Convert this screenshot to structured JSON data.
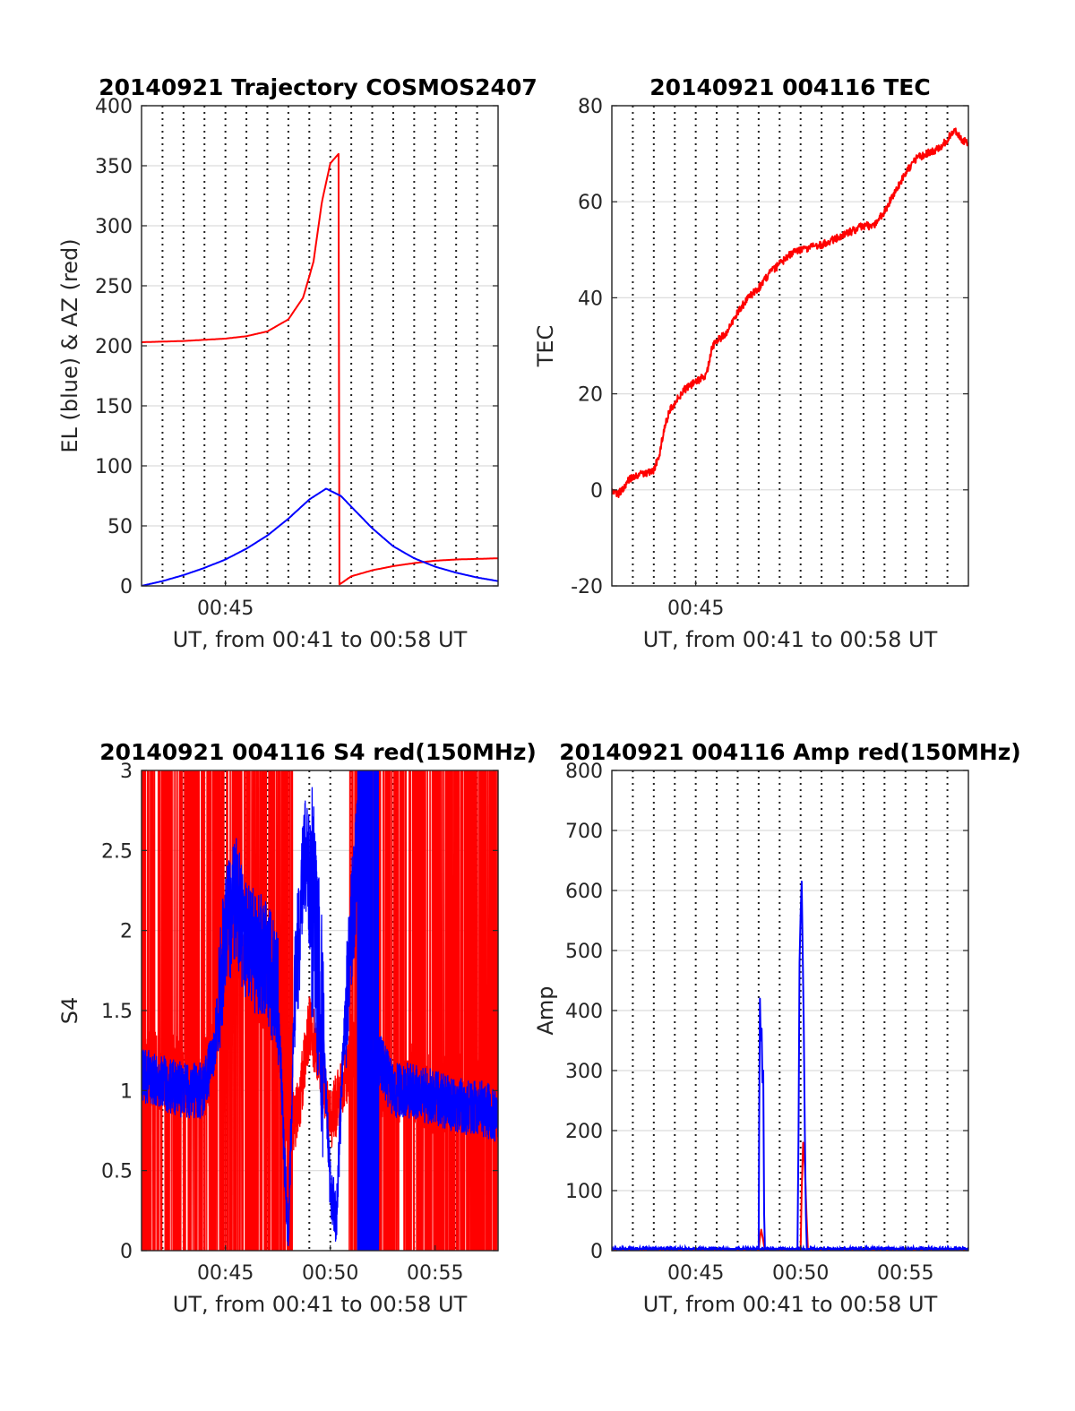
{
  "chart_data": [
    {
      "id": "trajectory",
      "type": "line",
      "title": "20140921 Trajectory COSMOS2407",
      "xlabel": "UT, from 00:41 to 00:58 UT",
      "ylabel": "EL (blue) & AZ (red)",
      "xlim": [
        0,
        17
      ],
      "ylim": [
        0,
        400
      ],
      "yticks": [
        0,
        50,
        100,
        150,
        200,
        250,
        300,
        350,
        400
      ],
      "xticks": [
        {
          "x": 4,
          "label": "00:45"
        }
      ],
      "vgrid_x": [
        1,
        2,
        3,
        4,
        5,
        6,
        7,
        8,
        9,
        10,
        11,
        12,
        13,
        14,
        15,
        16
      ],
      "grid": true,
      "series": [
        {
          "color": "#ff0000",
          "values": [
            [
              0,
              203
            ],
            [
              1,
              203.5
            ],
            [
              2,
              204
            ],
            [
              3,
              205
            ],
            [
              4,
              206
            ],
            [
              5,
              208
            ],
            [
              6,
              212
            ],
            [
              7,
              222
            ],
            [
              7.7,
              240
            ],
            [
              8.2,
              270
            ],
            [
              8.6,
              320
            ],
            [
              9.0,
              352
            ],
            [
              9.4,
              360
            ],
            [
              9.42,
              1
            ],
            [
              10,
              8
            ],
            [
              11,
              13
            ],
            [
              12,
              16.5
            ],
            [
              13,
              19
            ],
            [
              14,
              21
            ],
            [
              15,
              22
            ],
            [
              16,
              22.5
            ],
            [
              17,
              23
            ]
          ]
        },
        {
          "color": "#0000ff",
          "values": [
            [
              0,
              0
            ],
            [
              1,
              4
            ],
            [
              2,
              9
            ],
            [
              3,
              15
            ],
            [
              4,
              22
            ],
            [
              5,
              31
            ],
            [
              6,
              42
            ],
            [
              7,
              56
            ],
            [
              8,
              72
            ],
            [
              8.8,
              81
            ],
            [
              9.5,
              75
            ],
            [
              10,
              66
            ],
            [
              11,
              48
            ],
            [
              12,
              33
            ],
            [
              13,
              23
            ],
            [
              14,
              16
            ],
            [
              15,
              11
            ],
            [
              16,
              7
            ],
            [
              17,
              4
            ]
          ]
        }
      ]
    },
    {
      "id": "tec",
      "type": "line",
      "title": "20140921 004116 TEC",
      "xlabel": "UT, from 00:41 to 00:58 UT",
      "ylabel": "TEC",
      "xlim": [
        0,
        17
      ],
      "ylim": [
        -20,
        80
      ],
      "yticks": [
        -20,
        0,
        20,
        40,
        60,
        80
      ],
      "xticks": [
        {
          "x": 4,
          "label": "00:45"
        }
      ],
      "vgrid_x": [
        1,
        2,
        3,
        4,
        5,
        6,
        7,
        8,
        9,
        10,
        11,
        12,
        13,
        14,
        15,
        16
      ],
      "grid": true,
      "series": [
        {
          "color": "#ff0000",
          "values": [
            [
              0,
              0
            ],
            [
              0.3,
              -1
            ],
            [
              0.8,
              2
            ],
            [
              1.2,
              3
            ],
            [
              2,
              4
            ],
            [
              2.3,
              8
            ],
            [
              2.5,
              13
            ],
            [
              2.8,
              17
            ],
            [
              3.5,
              21
            ],
            [
              4.5,
              24
            ],
            [
              4.8,
              30
            ],
            [
              5.5,
              33
            ],
            [
              6,
              37
            ],
            [
              6.5,
              40
            ],
            [
              7,
              42
            ],
            [
              7.5,
              45
            ],
            [
              8,
              47
            ],
            [
              8.5,
              49
            ],
            [
              9,
              50
            ],
            [
              10,
              51
            ],
            [
              11,
              53
            ],
            [
              12,
              55
            ],
            [
              12.5,
              55
            ],
            [
              13,
              58
            ],
            [
              13.5,
              62
            ],
            [
              14,
              66
            ],
            [
              14.5,
              69
            ],
            [
              15,
              70
            ],
            [
              15.6,
              71
            ],
            [
              16,
              73
            ],
            [
              16.3,
              75
            ],
            [
              16.7,
              73
            ],
            [
              17,
              72
            ]
          ]
        }
      ]
    },
    {
      "id": "s4",
      "type": "line",
      "title": "20140921 004116 S4 red(150MHz)",
      "xlabel": "UT, from 00:41 to 00:58 UT",
      "ylabel": "S4",
      "xlim": [
        0,
        17
      ],
      "ylim": [
        0,
        3
      ],
      "yticks": [
        0,
        0.5,
        1,
        1.5,
        2,
        2.5,
        3
      ],
      "xticks": [
        {
          "x": 4,
          "label": "00:45"
        },
        {
          "x": 9,
          "label": "00:50"
        },
        {
          "x": 14,
          "label": "00:55"
        }
      ],
      "vgrid_x": [
        1,
        2,
        3,
        4,
        5,
        6,
        7,
        8,
        9,
        10,
        11,
        12,
        13,
        14,
        15,
        16
      ],
      "grid": true,
      "series": [
        {
          "color": "#ff0000",
          "style": "noise",
          "values": [
            [
              0,
              1.1
            ],
            [
              1,
              1.0
            ],
            [
              2,
              1.0
            ],
            [
              3,
              0.95
            ],
            [
              3.5,
              1.2
            ],
            [
              4,
              1.8
            ],
            [
              5,
              1.6
            ],
            [
              6,
              1.5
            ],
            [
              6.5,
              1.3
            ],
            [
              7,
              0.7
            ],
            [
              7.5,
              0.9
            ],
            [
              8,
              1.4
            ],
            [
              8.5,
              1.2
            ],
            [
              9,
              0.8
            ],
            [
              9.5,
              1.0
            ],
            [
              10,
              1.2
            ],
            [
              11,
              1.0
            ],
            [
              12,
              0.95
            ],
            [
              13,
              0.95
            ],
            [
              14,
              0.85
            ],
            [
              15,
              0.9
            ],
            [
              16,
              0.85
            ],
            [
              17,
              0.85
            ]
          ]
        },
        {
          "color": "#0000ff",
          "style": "noise",
          "values": [
            [
              0,
              1.1
            ],
            [
              1,
              1.05
            ],
            [
              2,
              1.0
            ],
            [
              3,
              1.0
            ],
            [
              3.5,
              1.3
            ],
            [
              4,
              2.0
            ],
            [
              4.5,
              2.2
            ],
            [
              5,
              1.9
            ],
            [
              6,
              1.8
            ],
            [
              6.5,
              1.6
            ],
            [
              6.8,
              0.6
            ],
            [
              7,
              0.1
            ],
            [
              7.3,
              1.6
            ],
            [
              7.8,
              2.5
            ],
            [
              8.3,
              2.0
            ],
            [
              8.7,
              1.2
            ],
            [
              9,
              0.4
            ],
            [
              9.3,
              0.2
            ],
            [
              9.6,
              1.2
            ],
            [
              10,
              2.0
            ],
            [
              10.5,
              2.8
            ],
            [
              11,
              2.5
            ],
            [
              11.3,
              1.2
            ],
            [
              12,
              1.0
            ],
            [
              13,
              1.0
            ],
            [
              14,
              0.95
            ],
            [
              15,
              0.9
            ],
            [
              16,
              0.9
            ],
            [
              17,
              0.85
            ]
          ]
        }
      ]
    },
    {
      "id": "amp",
      "type": "line",
      "title": "20140921 004116 Amp red(150MHz)",
      "xlabel": "UT, from 00:41 to 00:58 UT",
      "ylabel": "Amp",
      "xlim": [
        0,
        17
      ],
      "ylim": [
        0,
        800
      ],
      "yticks": [
        0,
        100,
        200,
        300,
        400,
        500,
        600,
        700,
        800
      ],
      "xticks": [
        {
          "x": 4,
          "label": "00:45"
        },
        {
          "x": 9,
          "label": "00:50"
        },
        {
          "x": 14,
          "label": "00:55"
        }
      ],
      "vgrid_x": [
        1,
        2,
        3,
        4,
        5,
        6,
        7,
        8,
        9,
        10,
        11,
        12,
        13,
        14,
        15,
        16
      ],
      "grid": true,
      "series": [
        {
          "color": "#ff0000",
          "values": [
            [
              0,
              0
            ],
            [
              7,
              0
            ],
            [
              7.05,
              20
            ],
            [
              7.12,
              35
            ],
            [
              7.2,
              20
            ],
            [
              7.3,
              0
            ],
            [
              9.0,
              0
            ],
            [
              9.05,
              100
            ],
            [
              9.12,
              180
            ],
            [
              9.2,
              140
            ],
            [
              9.28,
              60
            ],
            [
              9.35,
              0
            ],
            [
              17,
              0
            ]
          ]
        },
        {
          "color": "#0000ff",
          "values": [
            [
              0,
              3
            ],
            [
              7,
              3
            ],
            [
              7.02,
              200
            ],
            [
              7.06,
              420
            ],
            [
              7.1,
              350
            ],
            [
              7.14,
              370
            ],
            [
              7.18,
              280
            ],
            [
              7.22,
              300
            ],
            [
              7.26,
              60
            ],
            [
              7.3,
              3
            ],
            [
              8.85,
              3
            ],
            [
              8.9,
              200
            ],
            [
              8.95,
              480
            ],
            [
              9.0,
              560
            ],
            [
              9.05,
              615
            ],
            [
              9.1,
              500
            ],
            [
              9.15,
              380
            ],
            [
              9.2,
              200
            ],
            [
              9.25,
              60
            ],
            [
              9.3,
              3
            ],
            [
              17,
              3
            ]
          ]
        }
      ]
    }
  ]
}
